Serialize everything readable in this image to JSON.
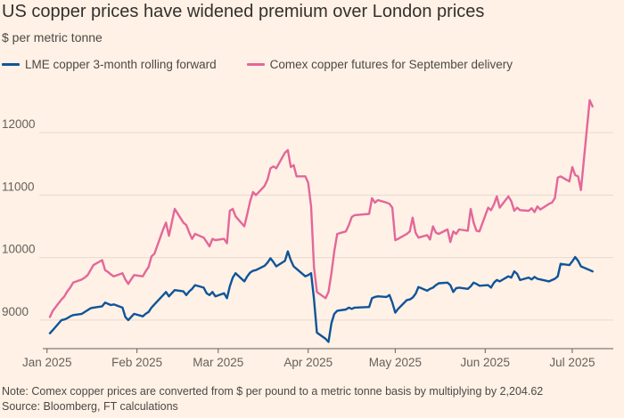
{
  "title": "US copper prices have widened premium over London prices",
  "subtitle": "$ per metric tonne",
  "footer": {
    "note": "Note: Comex copper prices are converted from $ per pound to a metric tonne basis by multiplying by 2,204.62",
    "source": "Source: Bloomberg, FT calculations"
  },
  "colors": {
    "background": "#fff1e5",
    "lme": "#0f5499",
    "comex": "#e3679a",
    "grid": "#e6d9ce",
    "axis": "#66605c"
  },
  "chart_data": {
    "type": "line",
    "title": "US copper prices have widened premium over London prices",
    "ylabel": "$ per metric tonne",
    "ylim": [
      8600,
      12700
    ],
    "yticks": [
      9000,
      10000,
      11000,
      12000
    ],
    "ytick_labels": [
      "9000",
      "10000",
      "11000",
      "12000"
    ],
    "xlim": [
      "2025-01-02",
      "2025-07-09"
    ],
    "xticks": [
      {
        "date": "2025-01-01",
        "label": "Jan 2025"
      },
      {
        "date": "2025-02-01",
        "label": "Feb 2025"
      },
      {
        "date": "2025-03-01",
        "label": "Mar 2025"
      },
      {
        "date": "2025-04-01",
        "label": "Apr 2025"
      },
      {
        "date": "2025-05-01",
        "label": "May 2025"
      },
      {
        "date": "2025-06-01",
        "label": "Jun 2025"
      },
      {
        "date": "2025-07-01",
        "label": "Jul 2025"
      }
    ],
    "grid": true,
    "legend_position": "top-left",
    "series": [
      {
        "name": "LME copper 3-month rolling forward",
        "color": "#0f5499",
        "points": [
          [
            "2025-01-02",
            8790
          ],
          [
            "2025-01-03",
            8840
          ],
          [
            "2025-01-06",
            9000
          ],
          [
            "2025-01-07",
            9010
          ],
          [
            "2025-01-08",
            9030
          ],
          [
            "2025-01-09",
            9060
          ],
          [
            "2025-01-10",
            9080
          ],
          [
            "2025-01-13",
            9100
          ],
          [
            "2025-01-14",
            9130
          ],
          [
            "2025-01-15",
            9160
          ],
          [
            "2025-01-16",
            9190
          ],
          [
            "2025-01-17",
            9200
          ],
          [
            "2025-01-20",
            9220
          ],
          [
            "2025-01-21",
            9280
          ],
          [
            "2025-01-22",
            9260
          ],
          [
            "2025-01-23",
            9240
          ],
          [
            "2025-01-24",
            9250
          ],
          [
            "2025-01-27",
            9200
          ],
          [
            "2025-01-28",
            9050
          ],
          [
            "2025-01-29",
            9000
          ],
          [
            "2025-01-30",
            9050
          ],
          [
            "2025-01-31",
            9100
          ],
          [
            "2025-02-03",
            9060
          ],
          [
            "2025-02-04",
            9100
          ],
          [
            "2025-02-05",
            9130
          ],
          [
            "2025-02-06",
            9200
          ],
          [
            "2025-02-07",
            9250
          ],
          [
            "2025-02-10",
            9400
          ],
          [
            "2025-02-11",
            9450
          ],
          [
            "2025-02-12",
            9380
          ],
          [
            "2025-02-13",
            9430
          ],
          [
            "2025-02-14",
            9480
          ],
          [
            "2025-02-17",
            9460
          ],
          [
            "2025-02-18",
            9400
          ],
          [
            "2025-02-19",
            9460
          ],
          [
            "2025-02-20",
            9500
          ],
          [
            "2025-02-21",
            9560
          ],
          [
            "2025-02-24",
            9520
          ],
          [
            "2025-02-25",
            9430
          ],
          [
            "2025-02-26",
            9400
          ],
          [
            "2025-02-27",
            9450
          ],
          [
            "2025-02-28",
            9380
          ],
          [
            "2025-03-03",
            9430
          ],
          [
            "2025-03-04",
            9350
          ],
          [
            "2025-03-05",
            9540
          ],
          [
            "2025-03-06",
            9680
          ],
          [
            "2025-03-07",
            9750
          ],
          [
            "2025-03-10",
            9620
          ],
          [
            "2025-03-11",
            9700
          ],
          [
            "2025-03-12",
            9760
          ],
          [
            "2025-03-13",
            9790
          ],
          [
            "2025-03-14",
            9800
          ],
          [
            "2025-03-17",
            9870
          ],
          [
            "2025-03-18",
            9920
          ],
          [
            "2025-03-19",
            9990
          ],
          [
            "2025-03-20",
            9930
          ],
          [
            "2025-03-21",
            9860
          ],
          [
            "2025-03-24",
            9950
          ],
          [
            "2025-03-25",
            10100
          ],
          [
            "2025-03-26",
            9960
          ],
          [
            "2025-03-27",
            9860
          ],
          [
            "2025-03-28",
            9820
          ],
          [
            "2025-03-31",
            9700
          ],
          [
            "2025-04-01",
            9720
          ],
          [
            "2025-04-02",
            9750
          ],
          [
            "2025-04-03",
            9340
          ],
          [
            "2025-04-04",
            8800
          ],
          [
            "2025-04-07",
            8700
          ],
          [
            "2025-04-08",
            8650
          ],
          [
            "2025-04-09",
            8950
          ],
          [
            "2025-04-10",
            9100
          ],
          [
            "2025-04-11",
            9150
          ],
          [
            "2025-04-14",
            9170
          ],
          [
            "2025-04-15",
            9200
          ],
          [
            "2025-04-16",
            9180
          ],
          [
            "2025-04-17",
            9200
          ],
          [
            "2025-04-22",
            9210
          ],
          [
            "2025-04-23",
            9350
          ],
          [
            "2025-04-24",
            9370
          ],
          [
            "2025-04-25",
            9380
          ],
          [
            "2025-04-28",
            9370
          ],
          [
            "2025-04-29",
            9400
          ],
          [
            "2025-04-30",
            9280
          ],
          [
            "2025-05-01",
            9120
          ],
          [
            "2025-05-02",
            9180
          ],
          [
            "2025-05-05",
            9320
          ],
          [
            "2025-05-06",
            9330
          ],
          [
            "2025-05-07",
            9360
          ],
          [
            "2025-05-08",
            9420
          ],
          [
            "2025-05-09",
            9530
          ],
          [
            "2025-05-12",
            9470
          ],
          [
            "2025-05-13",
            9500
          ],
          [
            "2025-05-14",
            9520
          ],
          [
            "2025-05-15",
            9560
          ],
          [
            "2025-05-16",
            9590
          ],
          [
            "2025-05-19",
            9600
          ],
          [
            "2025-05-20",
            9560
          ],
          [
            "2025-05-21",
            9450
          ],
          [
            "2025-05-22",
            9510
          ],
          [
            "2025-05-23",
            9520
          ],
          [
            "2025-05-26",
            9500
          ],
          [
            "2025-05-27",
            9540
          ],
          [
            "2025-05-28",
            9600
          ],
          [
            "2025-05-29",
            9580
          ],
          [
            "2025-05-30",
            9550
          ],
          [
            "2025-06-02",
            9560
          ],
          [
            "2025-06-03",
            9520
          ],
          [
            "2025-06-04",
            9600
          ],
          [
            "2025-06-05",
            9640
          ],
          [
            "2025-06-06",
            9620
          ],
          [
            "2025-06-09",
            9700
          ],
          [
            "2025-06-10",
            9680
          ],
          [
            "2025-06-11",
            9780
          ],
          [
            "2025-06-12",
            9740
          ],
          [
            "2025-06-13",
            9640
          ],
          [
            "2025-06-16",
            9680
          ],
          [
            "2025-06-17",
            9650
          ],
          [
            "2025-06-18",
            9690
          ],
          [
            "2025-06-19",
            9660
          ],
          [
            "2025-06-20",
            9650
          ],
          [
            "2025-06-23",
            9620
          ],
          [
            "2025-06-24",
            9640
          ],
          [
            "2025-06-25",
            9660
          ],
          [
            "2025-06-26",
            9700
          ],
          [
            "2025-06-27",
            9900
          ],
          [
            "2025-06-30",
            9880
          ],
          [
            "2025-07-01",
            9940
          ],
          [
            "2025-07-02",
            10010
          ],
          [
            "2025-07-03",
            9950
          ],
          [
            "2025-07-04",
            9860
          ],
          [
            "2025-07-07",
            9800
          ],
          [
            "2025-07-08",
            9780
          ]
        ]
      },
      {
        "name": "Comex copper futures for September delivery",
        "color": "#e3679a",
        "points": [
          [
            "2025-01-02",
            9050
          ],
          [
            "2025-01-03",
            9150
          ],
          [
            "2025-01-06",
            9330
          ],
          [
            "2025-01-07",
            9380
          ],
          [
            "2025-01-08",
            9460
          ],
          [
            "2025-01-09",
            9520
          ],
          [
            "2025-01-10",
            9600
          ],
          [
            "2025-01-13",
            9650
          ],
          [
            "2025-01-14",
            9680
          ],
          [
            "2025-01-15",
            9720
          ],
          [
            "2025-01-16",
            9800
          ],
          [
            "2025-01-17",
            9880
          ],
          [
            "2025-01-20",
            9960
          ],
          [
            "2025-01-21",
            9800
          ],
          [
            "2025-01-22",
            9770
          ],
          [
            "2025-01-23",
            9730
          ],
          [
            "2025-01-24",
            9700
          ],
          [
            "2025-01-27",
            9750
          ],
          [
            "2025-01-28",
            9650
          ],
          [
            "2025-01-29",
            9580
          ],
          [
            "2025-01-30",
            9650
          ],
          [
            "2025-01-31",
            9720
          ],
          [
            "2025-02-03",
            9700
          ],
          [
            "2025-02-04",
            9780
          ],
          [
            "2025-02-05",
            9850
          ],
          [
            "2025-02-06",
            10020
          ],
          [
            "2025-02-07",
            10060
          ],
          [
            "2025-02-10",
            10450
          ],
          [
            "2025-02-11",
            10560
          ],
          [
            "2025-02-12",
            10350
          ],
          [
            "2025-02-13",
            10560
          ],
          [
            "2025-02-14",
            10780
          ],
          [
            "2025-02-17",
            10560
          ],
          [
            "2025-02-18",
            10520
          ],
          [
            "2025-02-19",
            10400
          ],
          [
            "2025-02-20",
            10300
          ],
          [
            "2025-02-21",
            10380
          ],
          [
            "2025-02-24",
            10320
          ],
          [
            "2025-02-25",
            10250
          ],
          [
            "2025-02-26",
            10180
          ],
          [
            "2025-02-27",
            10300
          ],
          [
            "2025-02-28",
            10280
          ],
          [
            "2025-03-03",
            10300
          ],
          [
            "2025-03-04",
            10230
          ],
          [
            "2025-03-05",
            10750
          ],
          [
            "2025-03-06",
            10780
          ],
          [
            "2025-03-07",
            10660
          ],
          [
            "2025-03-10",
            10500
          ],
          [
            "2025-03-11",
            10700
          ],
          [
            "2025-03-12",
            10900
          ],
          [
            "2025-03-13",
            11050
          ],
          [
            "2025-03-14",
            11000
          ],
          [
            "2025-03-17",
            11150
          ],
          [
            "2025-03-18",
            11250
          ],
          [
            "2025-03-19",
            11430
          ],
          [
            "2025-03-20",
            11460
          ],
          [
            "2025-03-21",
            11430
          ],
          [
            "2025-03-24",
            11680
          ],
          [
            "2025-03-25",
            11720
          ],
          [
            "2025-03-26",
            11450
          ],
          [
            "2025-03-27",
            11480
          ],
          [
            "2025-03-28",
            11300
          ],
          [
            "2025-03-31",
            11300
          ],
          [
            "2025-04-01",
            11200
          ],
          [
            "2025-04-02",
            10820
          ],
          [
            "2025-04-03",
            9850
          ],
          [
            "2025-04-04",
            9450
          ],
          [
            "2025-04-07",
            9350
          ],
          [
            "2025-04-08",
            9450
          ],
          [
            "2025-04-09",
            9750
          ],
          [
            "2025-04-10",
            10100
          ],
          [
            "2025-04-11",
            10380
          ],
          [
            "2025-04-14",
            10420
          ],
          [
            "2025-04-15",
            10520
          ],
          [
            "2025-04-16",
            10650
          ],
          [
            "2025-04-17",
            10680
          ],
          [
            "2025-04-22",
            10700
          ],
          [
            "2025-04-23",
            10950
          ],
          [
            "2025-04-24",
            10880
          ],
          [
            "2025-04-25",
            10920
          ],
          [
            "2025-04-28",
            10880
          ],
          [
            "2025-04-29",
            10860
          ],
          [
            "2025-04-30",
            10800
          ],
          [
            "2025-05-01",
            10280
          ],
          [
            "2025-05-02",
            10300
          ],
          [
            "2025-05-05",
            10380
          ],
          [
            "2025-05-06",
            10420
          ],
          [
            "2025-05-07",
            10640
          ],
          [
            "2025-05-08",
            10400
          ],
          [
            "2025-05-09",
            10320
          ],
          [
            "2025-05-12",
            10360
          ],
          [
            "2025-05-13",
            10290
          ],
          [
            "2025-05-14",
            10500
          ],
          [
            "2025-05-15",
            10400
          ],
          [
            "2025-05-16",
            10380
          ],
          [
            "2025-05-19",
            10450
          ],
          [
            "2025-05-20",
            10250
          ],
          [
            "2025-05-21",
            10420
          ],
          [
            "2025-05-22",
            10380
          ],
          [
            "2025-05-23",
            10450
          ],
          [
            "2025-05-26",
            10430
          ],
          [
            "2025-05-27",
            10780
          ],
          [
            "2025-05-28",
            10560
          ],
          [
            "2025-05-29",
            10430
          ],
          [
            "2025-05-30",
            10420
          ],
          [
            "2025-06-02",
            10800
          ],
          [
            "2025-06-03",
            10760
          ],
          [
            "2025-06-04",
            10850
          ],
          [
            "2025-06-05",
            10980
          ],
          [
            "2025-06-06",
            10800
          ],
          [
            "2025-06-09",
            10980
          ],
          [
            "2025-06-10",
            10900
          ],
          [
            "2025-06-11",
            10750
          ],
          [
            "2025-06-12",
            10800
          ],
          [
            "2025-06-13",
            10760
          ],
          [
            "2025-06-16",
            10750
          ],
          [
            "2025-06-17",
            10790
          ],
          [
            "2025-06-18",
            10730
          ],
          [
            "2025-06-19",
            10820
          ],
          [
            "2025-06-20",
            10770
          ],
          [
            "2025-06-23",
            10860
          ],
          [
            "2025-06-24",
            10880
          ],
          [
            "2025-06-25",
            10950
          ],
          [
            "2025-06-26",
            11280
          ],
          [
            "2025-06-27",
            11300
          ],
          [
            "2025-06-30",
            11220
          ],
          [
            "2025-07-01",
            11450
          ],
          [
            "2025-07-02",
            11320
          ],
          [
            "2025-07-03",
            11300
          ],
          [
            "2025-07-04",
            11080
          ],
          [
            "2025-07-07",
            12520
          ],
          [
            "2025-07-08",
            12420
          ]
        ]
      }
    ]
  }
}
